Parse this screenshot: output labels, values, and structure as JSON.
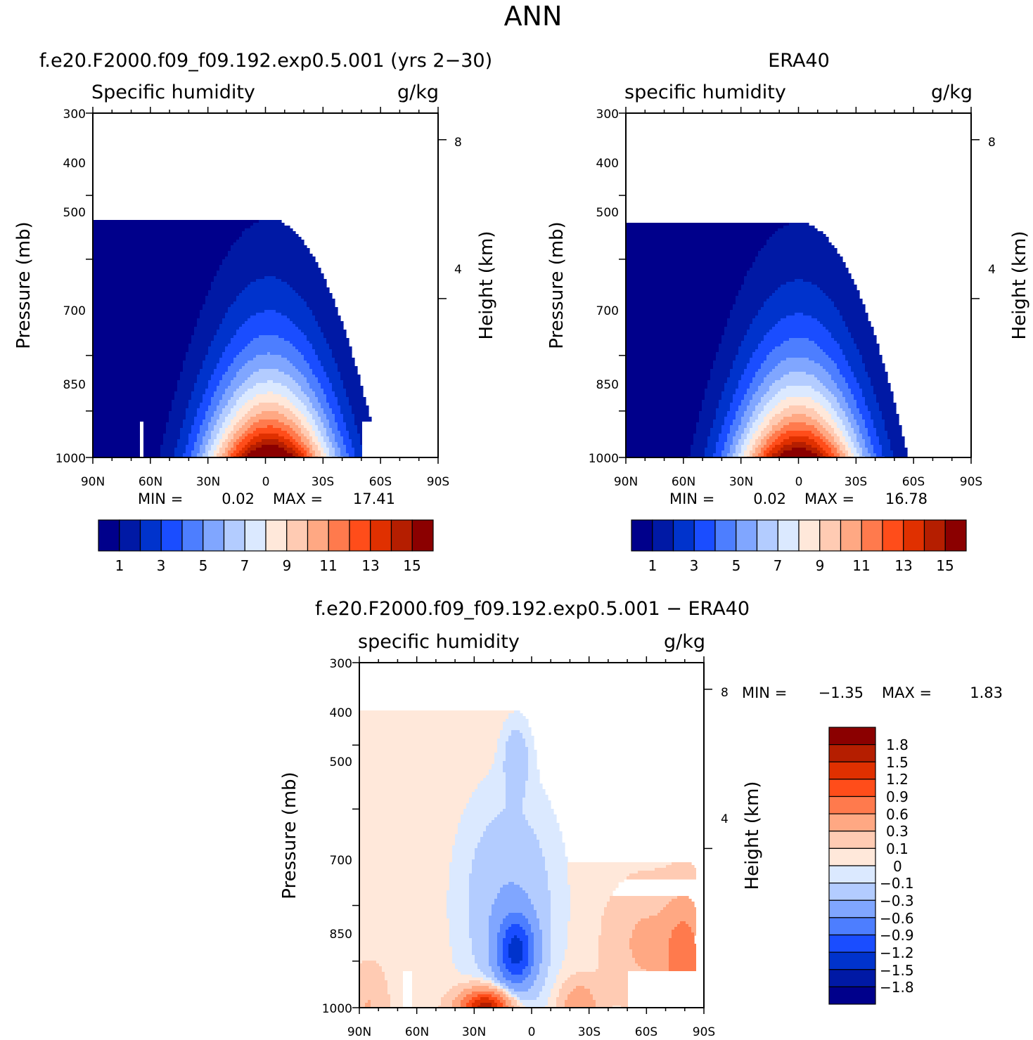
{
  "title": "ANN",
  "chart_data": [
    {
      "id": "model",
      "type": "contour",
      "title": "f.e20.F2000.f09_f09.192.exp0.5.001 (yrs 2−30)",
      "left_label": "Specific humidity",
      "right_label": "g/kg",
      "ylabel": "Pressure (mb)",
      "y2label": "Height (km)",
      "xticks": [
        "90N",
        "60N",
        "30N",
        "0",
        "30S",
        "60S",
        "90S"
      ],
      "yticks": [
        "300",
        "400",
        "500",
        "700",
        "850",
        "1000"
      ],
      "y2ticks": [
        "8",
        "4"
      ],
      "min_label": "MIN =",
      "min_value": "0.02",
      "max_label": "MAX =",
      "max_value": "17.41",
      "max": 17.41,
      "peak_lat": -2
    },
    {
      "id": "obs",
      "type": "contour",
      "title": "ERA40",
      "left_label": "specific humidity",
      "right_label": "g/kg",
      "ylabel": "Pressure (mb)",
      "y2label": "Height (km)",
      "xticks": [
        "90N",
        "60N",
        "30N",
        "0",
        "30S",
        "60S",
        "90S"
      ],
      "yticks": [
        "300",
        "400",
        "500",
        "700",
        "850",
        "1000"
      ],
      "y2ticks": [
        "8",
        "4"
      ],
      "min_label": "MIN =",
      "min_value": "0.02",
      "max_label": "MAX =",
      "max_value": "16.78",
      "max": 16.78,
      "peak_lat": 0
    },
    {
      "id": "diff",
      "type": "contour",
      "title": "f.e20.F2000.f09_f09.192.exp0.5.001 − ERA40",
      "left_label": "specific humidity",
      "right_label": "g/kg",
      "ylabel": "Pressure (mb)",
      "y2label": "Height (km)",
      "xticks": [
        "90N",
        "60N",
        "30N",
        "0",
        "30S",
        "60S",
        "90S"
      ],
      "yticks": [
        "300",
        "400",
        "500",
        "700",
        "850",
        "1000"
      ],
      "y2ticks": [
        "8",
        "4"
      ],
      "min_label": "MIN =",
      "min_value": "−1.35",
      "max_label": "MAX =",
      "max_value": "1.83"
    }
  ],
  "colorbar_main": {
    "levels": [
      1,
      2,
      3,
      4,
      5,
      6,
      7,
      8,
      9,
      10,
      11,
      12,
      13,
      14,
      15
    ],
    "labels": [
      "1",
      "3",
      "5",
      "7",
      "9",
      "11",
      "13",
      "15"
    ],
    "colors": [
      "#00008b",
      "#0019a5",
      "#0033cc",
      "#1a4dff",
      "#4d7eff",
      "#80a6ff",
      "#b3ccff",
      "#dbe9ff",
      "#ffe8da",
      "#ffcbb3",
      "#ffa883",
      "#ff7a4d",
      "#ff4d1a",
      "#e03000",
      "#b51e00",
      "#8b0000"
    ]
  },
  "colorbar_diff": {
    "levels": [
      -1.8,
      -1.5,
      -1.2,
      -0.9,
      -0.6,
      -0.3,
      -0.1,
      0,
      0.1,
      0.3,
      0.6,
      0.9,
      1.2,
      1.5,
      1.8
    ],
    "labels": [
      "1.8",
      "1.5",
      "1.2",
      "0.9",
      "0.6",
      "0.3",
      "0.1",
      "0",
      "−0.1",
      "−0.3",
      "−0.6",
      "−0.9",
      "−1.2",
      "−1.5",
      "−1.8"
    ],
    "colors": [
      "#00008b",
      "#0019a5",
      "#0033cc",
      "#1a4dff",
      "#4d7eff",
      "#80a6ff",
      "#b3ccff",
      "#dbe9ff",
      "#ffe8da",
      "#ffcbb3",
      "#ffa883",
      "#ff7a4d",
      "#ff4d1a",
      "#e03000",
      "#b51e00",
      "#8b0000"
    ]
  }
}
